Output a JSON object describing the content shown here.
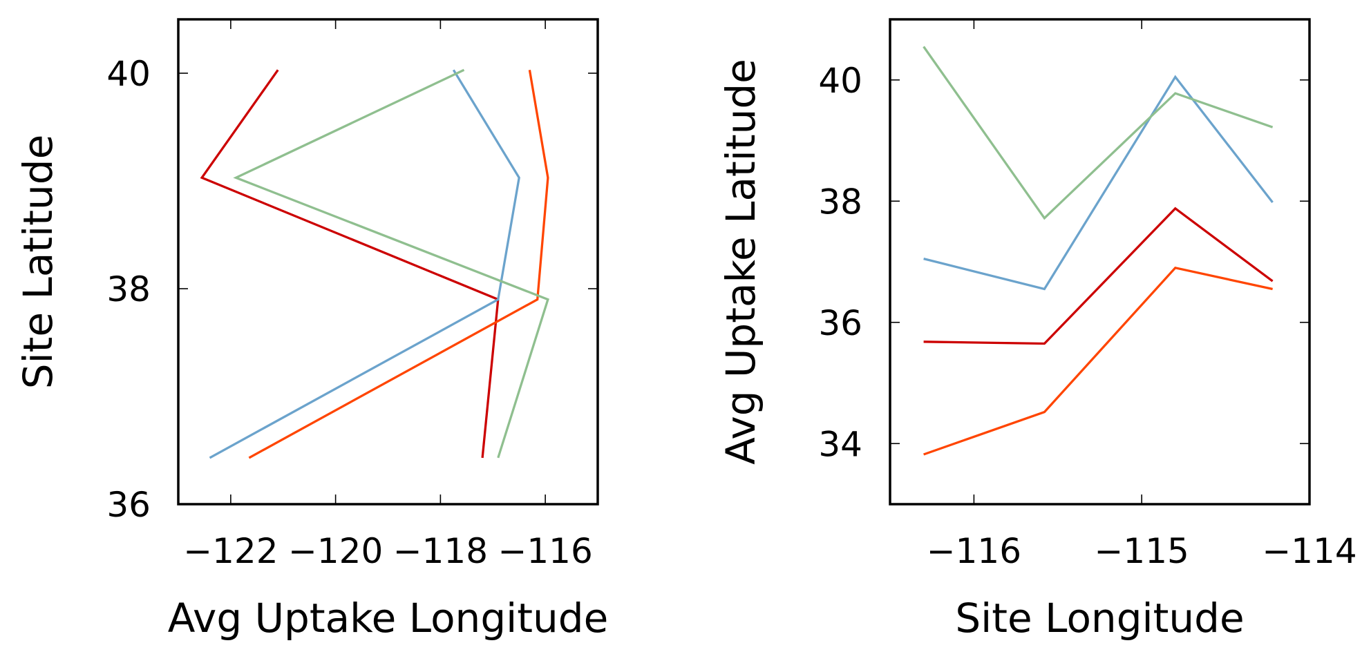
{
  "chart_data": [
    {
      "type": "line",
      "title": "",
      "xlabel": "Avg Uptake Longitude",
      "ylabel": "Site Latitude",
      "xlim": [
        -123,
        -115
      ],
      "ylim": [
        36,
        40.5
      ],
      "xticks": [
        -122,
        -120,
        -118,
        -116
      ],
      "xtick_labels": [
        "−122",
        "−120",
        "−118",
        "−116"
      ],
      "yticks": [
        36,
        38,
        40
      ],
      "ytick_labels": [
        "36",
        "38",
        "40"
      ],
      "grid": false,
      "series": [
        {
          "color": "#CC0000",
          "x": [
            -121.1,
            -122.55,
            -116.9,
            -117.2
          ],
          "y": [
            40.03,
            39.03,
            37.9,
            36.43
          ]
        },
        {
          "color": "#FF4500",
          "x": [
            -116.3,
            -115.95,
            -116.15,
            -121.65
          ],
          "y": [
            40.03,
            39.03,
            37.9,
            36.43
          ]
        },
        {
          "color": "#6BA3CC",
          "x": [
            -117.75,
            -116.5,
            -116.9,
            -122.4
          ],
          "y": [
            40.03,
            39.03,
            37.9,
            36.43
          ]
        },
        {
          "color": "#8FBF8F",
          "x": [
            -117.55,
            -121.9,
            -115.95,
            -116.9
          ],
          "y": [
            40.03,
            39.03,
            37.9,
            36.43
          ]
        }
      ]
    },
    {
      "type": "line",
      "title": "",
      "xlabel": "Site Longitude",
      "ylabel": "Avg Uptake Latitude",
      "xlim": [
        -116.5,
        -114
      ],
      "ylim": [
        33,
        41
      ],
      "xticks": [
        -116,
        -115,
        -114
      ],
      "xtick_labels": [
        "−116",
        "−115",
        "−114"
      ],
      "yticks": [
        34,
        36,
        38,
        40
      ],
      "ytick_labels": [
        "34",
        "36",
        "38",
        "40"
      ],
      "grid": false,
      "series": [
        {
          "color": "#CC0000",
          "x": [
            -116.3,
            -115.58,
            -114.8,
            -114.22
          ],
          "y": [
            35.68,
            35.65,
            37.88,
            36.68
          ]
        },
        {
          "color": "#FF4500",
          "x": [
            -116.3,
            -115.58,
            -114.8,
            -114.22
          ],
          "y": [
            33.82,
            34.52,
            36.9,
            36.55
          ]
        },
        {
          "color": "#6BA3CC",
          "x": [
            -116.3,
            -115.58,
            -114.8,
            -114.22
          ],
          "y": [
            37.05,
            36.55,
            40.05,
            37.98
          ]
        },
        {
          "color": "#8FBF8F",
          "x": [
            -116.3,
            -115.58,
            -114.8,
            -114.22
          ],
          "y": [
            40.55,
            37.72,
            39.78,
            39.22
          ]
        }
      ]
    }
  ]
}
